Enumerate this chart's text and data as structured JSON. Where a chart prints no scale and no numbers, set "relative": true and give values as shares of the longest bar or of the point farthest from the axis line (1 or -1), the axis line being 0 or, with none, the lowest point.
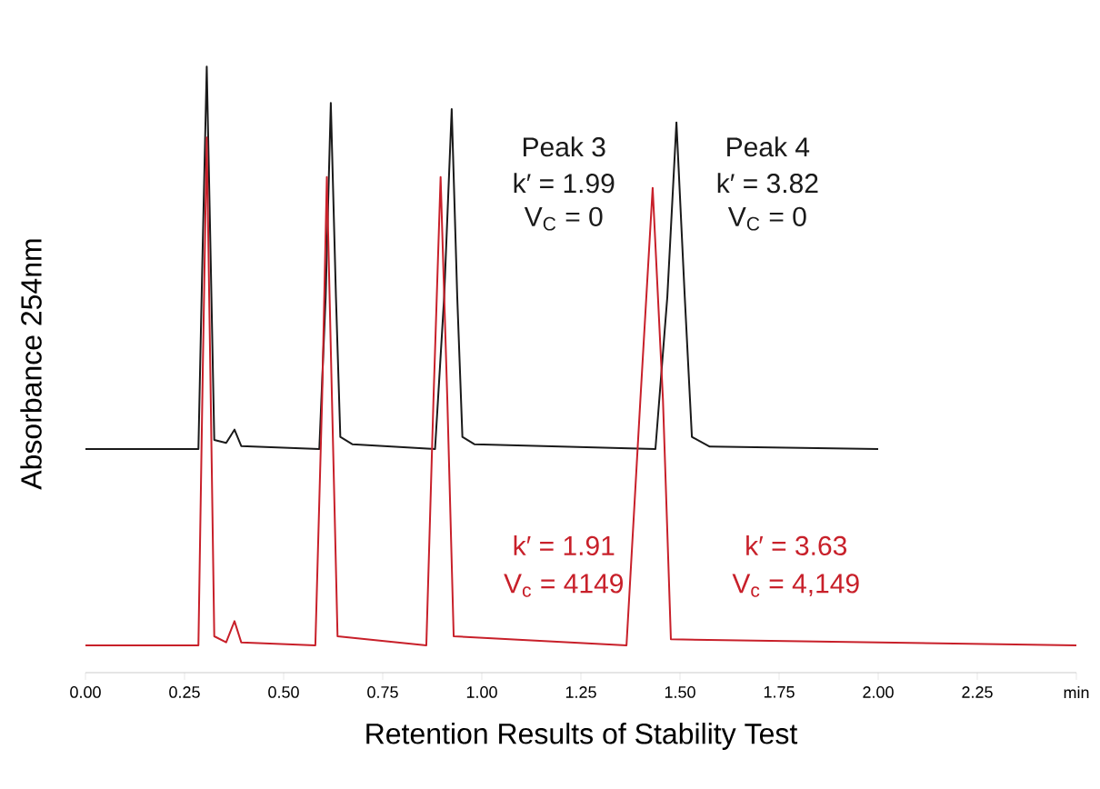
{
  "chart_data": {
    "type": "line",
    "relative": true,
    "xlabel": "Retention Results of Stability Test",
    "ylabel": "Absorbance 254nm",
    "xlim": [
      0,
      2.5
    ],
    "xticks": [
      {
        "value": 0,
        "label": "0.00"
      },
      {
        "value": 0.25,
        "label": "0.25"
      },
      {
        "value": 0.5,
        "label": "0.50"
      },
      {
        "value": 0.75,
        "label": "0.75"
      },
      {
        "value": 1,
        "label": "1.00"
      },
      {
        "value": 1.25,
        "label": "1.25"
      },
      {
        "value": 1.5,
        "label": "1.50"
      },
      {
        "value": 1.75,
        "label": "1.75"
      },
      {
        "value": 2,
        "label": "2.00"
      },
      {
        "value": 2.25,
        "label": "2.25"
      },
      {
        "value": 2.5,
        "label": "min"
      }
    ],
    "grid": false,
    "marker": "none",
    "line_style": "solid",
    "series": [
      {
        "color": "#1a1a1a",
        "x": [
          0,
          0.285,
          0.295,
          0.306,
          0.316,
          0.325,
          0.355,
          0.376,
          0.393,
          0.59,
          0.606,
          0.619,
          0.632,
          0.643,
          0.673,
          0.882,
          0.905,
          0.924,
          0.938,
          0.951,
          0.981,
          1.438,
          1.468,
          1.491,
          1.512,
          1.53,
          1.575,
          2.0
        ],
        "values": [
          0.369,
          0.369,
          0.68,
          1.0,
          0.68,
          0.384,
          0.379,
          0.401,
          0.374,
          0.369,
          0.62,
          0.94,
          0.62,
          0.389,
          0.377,
          0.369,
          0.62,
          0.93,
          0.62,
          0.389,
          0.377,
          0.369,
          0.62,
          0.908,
          0.62,
          0.389,
          0.373,
          0.369
        ]
      },
      {
        "color": "#c8202a",
        "x": [
          0,
          0.285,
          0.296,
          0.306,
          0.315,
          0.325,
          0.355,
          0.376,
          0.393,
          0.58,
          0.597,
          0.609,
          0.622,
          0.636,
          0.86,
          0.878,
          0.896,
          0.913,
          0.929,
          1.365,
          1.4,
          1.431,
          1.457,
          1.477,
          2.5
        ],
        "values": [
          0.045,
          0.045,
          0.5,
          0.883,
          0.5,
          0.06,
          0.05,
          0.085,
          0.05,
          0.045,
          0.45,
          0.818,
          0.45,
          0.06,
          0.045,
          0.45,
          0.818,
          0.45,
          0.06,
          0.045,
          0.45,
          0.8,
          0.45,
          0.055,
          0.045
        ]
      }
    ],
    "annotations": [
      "Peak 3",
      "k′ = 1.99",
      "V$_{C}$ = 0",
      "Peak 4",
      "k′ = 3.82",
      "V$_{C}$ = 0",
      "k′ = 1.91",
      "V$_{c}$ = 4149",
      "k′ = 3.63",
      "V$_{c}$ = 4,149"
    ]
  }
}
